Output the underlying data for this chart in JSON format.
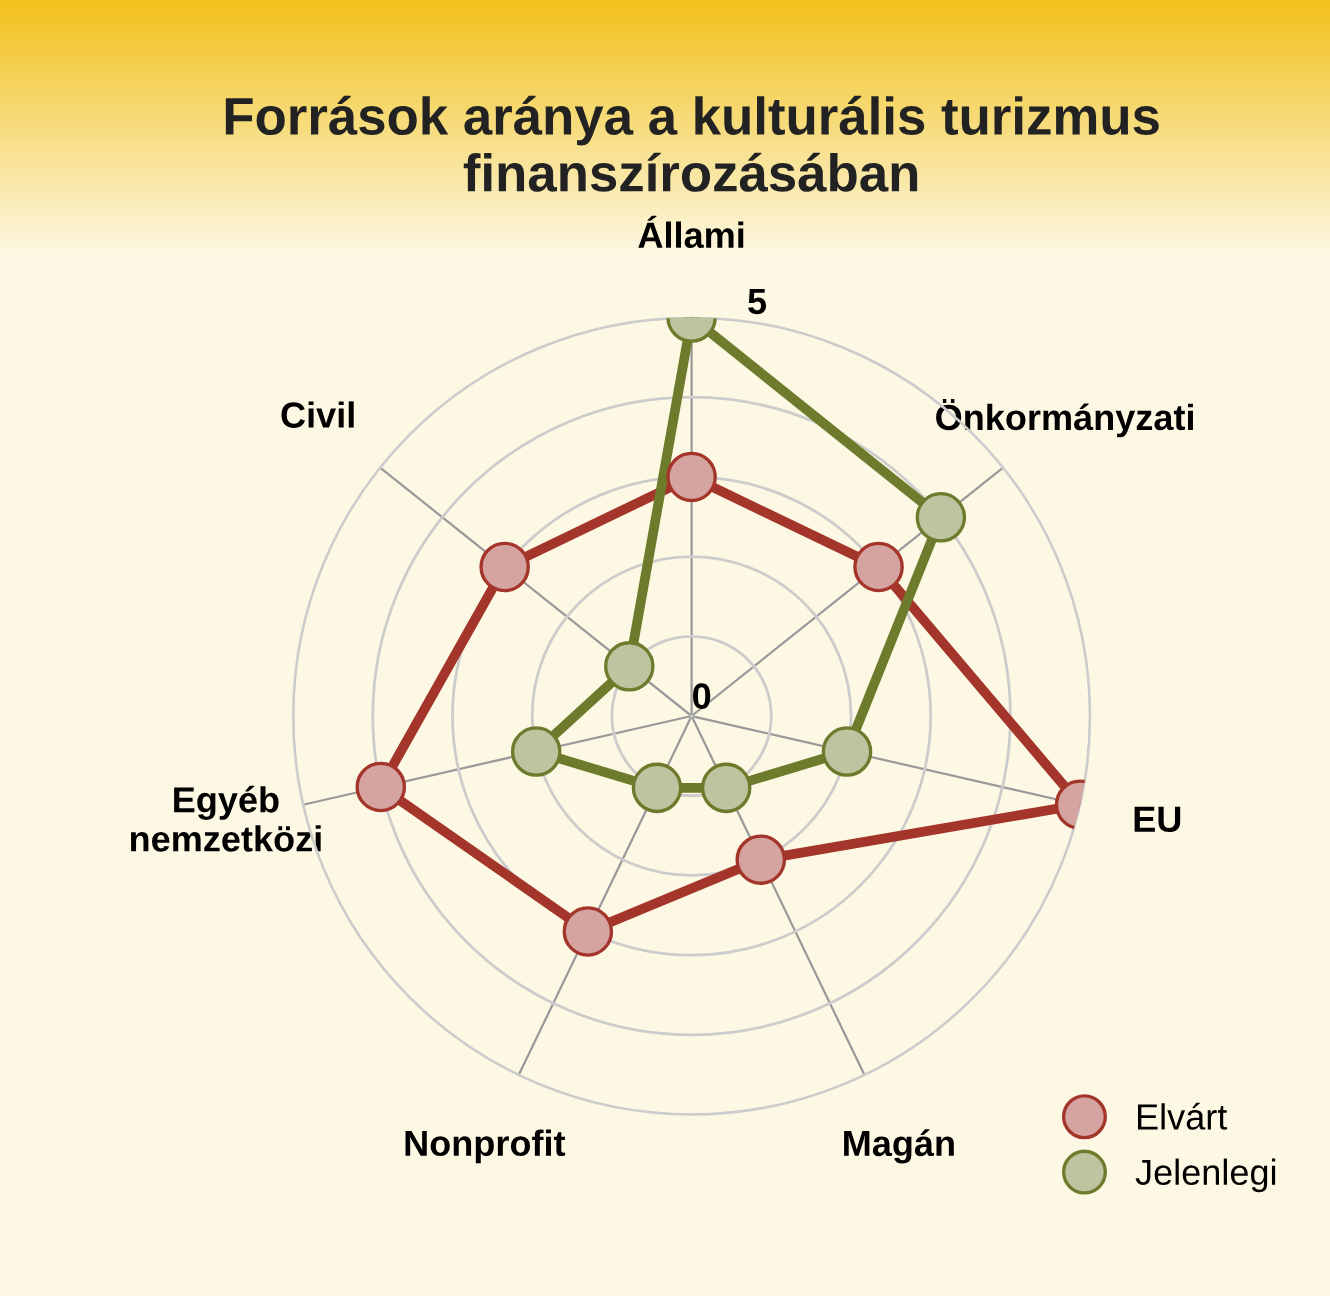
{
  "chart_data": {
    "type": "radar",
    "title": "Források aránya a kulturális turizmus\nfinanszírozásában",
    "categories": [
      "Állami",
      "Önkormányzati",
      "EU",
      "Magán",
      "Nonprofit",
      "Egyéb\nnemzetközi",
      "Civil"
    ],
    "series": [
      {
        "name": "Elvárt",
        "color": "#a3352b",
        "values": [
          3,
          3,
          5,
          2,
          3,
          4,
          3
        ]
      },
      {
        "name": "Jelenlegi",
        "color": "#6e7b2c",
        "values": [
          5,
          4,
          2,
          1,
          1,
          2,
          1
        ]
      }
    ],
    "ylim": [
      0,
      5
    ],
    "yticks": [
      0,
      5
    ],
    "grid": true,
    "legend": "bottom right",
    "marker": "circle",
    "line_style": "solid"
  }
}
